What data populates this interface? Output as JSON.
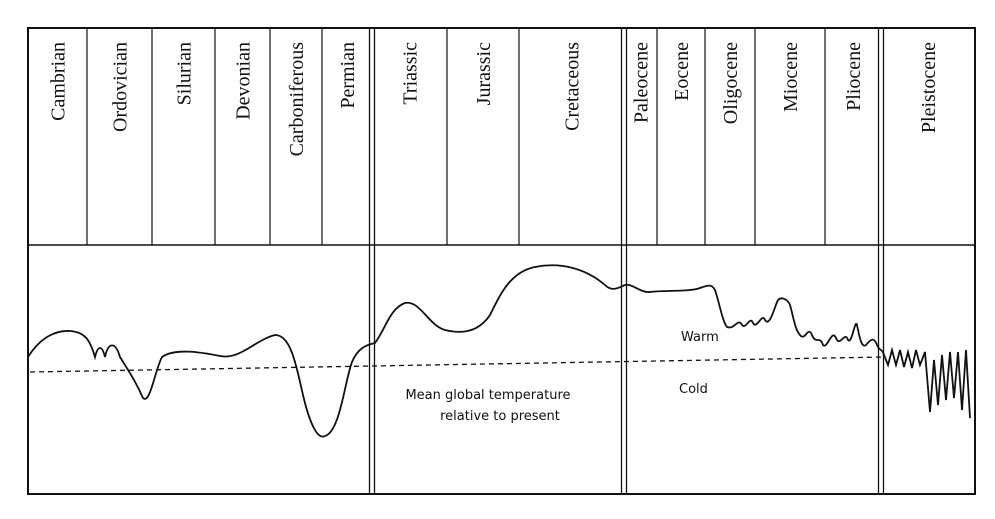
{
  "periods": [
    "Cambrian",
    "Ordovician",
    "Silurian",
    "Devonian",
    "Carboniferous",
    "Permian",
    "Triassic",
    "Jurassic",
    "Cretaceous",
    "Paleocene",
    "Eocene",
    "Oligocene",
    "Miocene",
    "Pliocene",
    "Pleistocene"
  ],
  "labels": {
    "warm": "Warm",
    "cold": "Cold",
    "caption_line1": "Mean global temperature",
    "caption_line2": "relative to present"
  }
}
